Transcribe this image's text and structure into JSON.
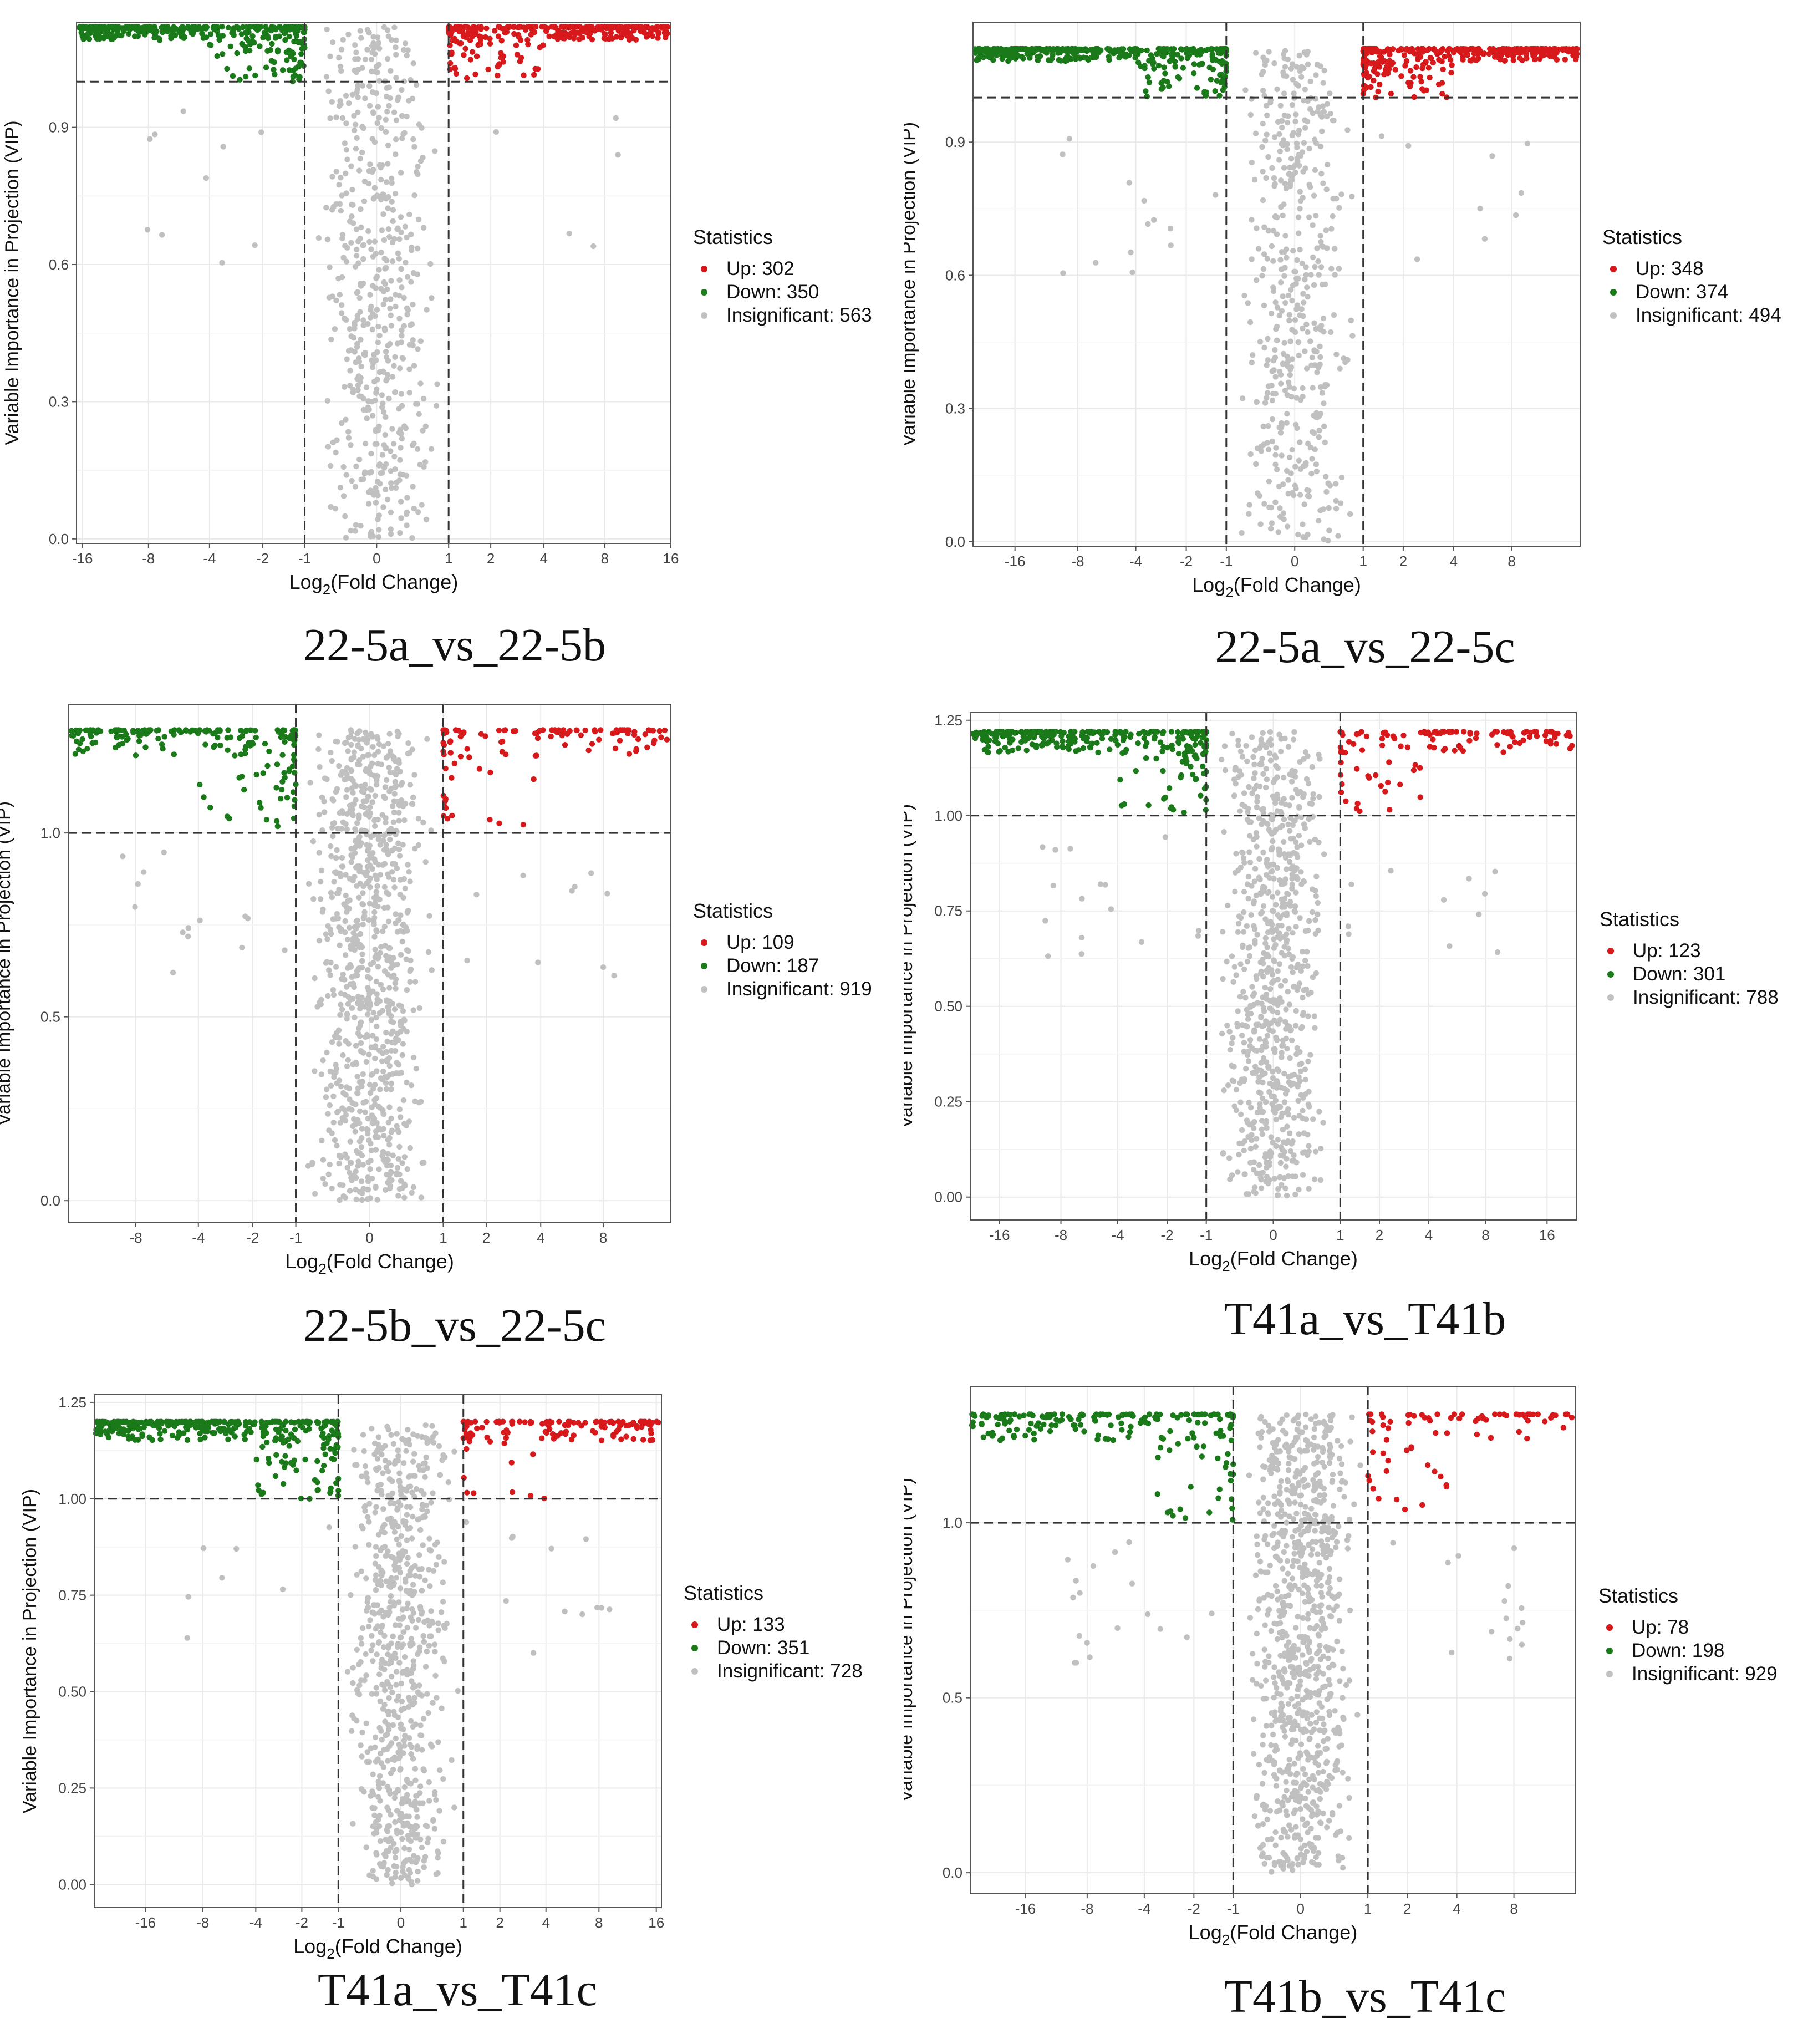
{
  "colors": {
    "up": "#d7191c",
    "down": "#1a7a1a",
    "insignificant": "#c0c0c0",
    "grid": "#e9e9e9",
    "threshold": "#333333"
  },
  "common": {
    "xlabel": "Log2(Fold Change)",
    "ylabel": "Variable Importance in Projection (VIP)",
    "legend_title": "Statistics",
    "vip_threshold": 1.0,
    "fc_threshold": [
      -1,
      1
    ],
    "x_ticks": [
      -16,
      -8,
      -4,
      -2,
      -1,
      0,
      1,
      2,
      4,
      8,
      16
    ],
    "x_scale": "signed-log2"
  },
  "chart_data": [
    {
      "type": "scatter",
      "title": "22-5a_vs_22-5b",
      "xlim": [
        -17,
        16
      ],
      "ylim": [
        -0.01,
        1.13
      ],
      "y_ticks": [
        0.0,
        0.3,
        0.6,
        0.9
      ],
      "x_ticks_shown": [
        -16,
        -8,
        -4,
        -2,
        -1,
        0,
        1,
        2,
        4,
        8,
        16
      ],
      "vip_max": 1.12,
      "legend": {
        "up": "Up: 302",
        "down": "Down: 350",
        "insignificant": "Insignificant: 563"
      },
      "counts": {
        "up": 302,
        "down": 350,
        "insignificant": 563
      }
    },
    {
      "type": "scatter",
      "title": "22-5a_vs_22-5c",
      "xlim": [
        -25,
        17
      ],
      "ylim": [
        -0.01,
        1.17
      ],
      "y_ticks": [
        0.0,
        0.3,
        0.6,
        0.9
      ],
      "x_ticks_shown": [
        -16,
        -8,
        -4,
        -2,
        -1,
        0,
        1,
        2,
        4,
        8
      ],
      "vip_max": 1.11,
      "legend": {
        "up": "Up: 348",
        "down": "Down: 374",
        "insignificant": "Insignificant: 494"
      },
      "counts": {
        "up": 348,
        "down": 374,
        "insignificant": 494
      }
    },
    {
      "type": "scatter",
      "title": "22-5b_vs_22-5c",
      "xlim": [
        -16,
        16
      ],
      "ylim": [
        -0.06,
        1.35
      ],
      "y_ticks": [
        0.0,
        0.5,
        1.0
      ],
      "x_ticks_shown": [
        -8,
        -4,
        -2,
        -1,
        0,
        1,
        2,
        4,
        8
      ],
      "vip_max": 1.28,
      "legend": {
        "up": "Up: 109",
        "down": "Down: 187",
        "insignificant": "Insignificant: 919"
      },
      "counts": {
        "up": 109,
        "down": 187,
        "insignificant": 919
      }
    },
    {
      "type": "scatter",
      "title": "T41a_vs_T41b",
      "xlim": [
        -22,
        22
      ],
      "ylim": [
        -0.06,
        1.27
      ],
      "y_ticks": [
        0.0,
        0.25,
        0.5,
        0.75,
        1.0,
        1.25
      ],
      "y_tick_labels": [
        "0.00",
        "0.25",
        "0.50",
        "0.75",
        "1.00",
        "1.25"
      ],
      "x_ticks_shown": [
        -16,
        -8,
        -4,
        -2,
        -1,
        0,
        1,
        2,
        4,
        8,
        16
      ],
      "vip_max": 1.22,
      "legend": {
        "up": "Up: 123",
        "down": "Down: 301",
        "insignificant": "Insignificant: 788"
      },
      "counts": {
        "up": 123,
        "down": 301,
        "insignificant": 788
      }
    },
    {
      "type": "scatter",
      "title": "T41a_vs_T41c",
      "xlim": [
        -29,
        17
      ],
      "ylim": [
        -0.06,
        1.27
      ],
      "y_ticks": [
        0.0,
        0.25,
        0.5,
        0.75,
        1.0,
        1.25
      ],
      "y_tick_labels": [
        "0.00",
        "0.25",
        "0.50",
        "0.75",
        "1.00",
        "1.25"
      ],
      "x_ticks_shown": [
        -16,
        -8,
        -4,
        -2,
        -1,
        0,
        1,
        2,
        4,
        8,
        16
      ],
      "vip_max": 1.2,
      "legend": {
        "up": "Up: 133",
        "down": "Down: 351",
        "insignificant": "Insignificant: 728"
      },
      "counts": {
        "up": 133,
        "down": 351,
        "insignificant": 728
      }
    },
    {
      "type": "scatter",
      "title": "T41b_vs_T41c",
      "xlim": [
        -29,
        16
      ],
      "ylim": [
        -0.06,
        1.39
      ],
      "y_ticks": [
        0.0,
        0.5,
        1.0
      ],
      "x_ticks_shown": [
        -16,
        -8,
        -4,
        -2,
        -1,
        0,
        1,
        2,
        4,
        8
      ],
      "vip_max": 1.31,
      "legend": {
        "up": "Up: 78",
        "down": "Down: 198",
        "insignificant": "Insignificant: 929"
      },
      "counts": {
        "up": 78,
        "down": 198,
        "insignificant": 929
      }
    }
  ]
}
